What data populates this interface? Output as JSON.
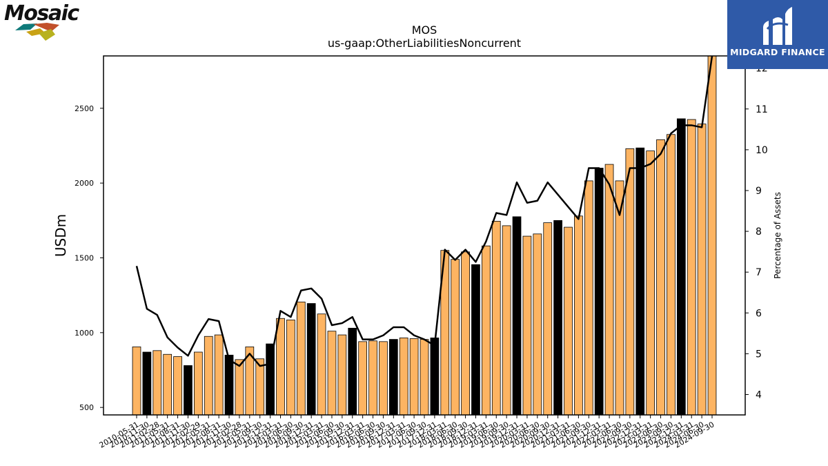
{
  "brand": {
    "left_logo_text": "Mosaic",
    "right_logo_text": "MIDGARD FINANCE",
    "colors": {
      "bar_regular": "#fdb462",
      "bar_highlight": "#000000",
      "line": "#000000",
      "midgard_bg": "#2f5aa8"
    }
  },
  "chart_data": {
    "type": "bar",
    "title": "MOS",
    "subtitle": "us-gaap:OtherLiabilitiesNoncurrent",
    "ylabel": "USDm",
    "y2label": "Percentage of Assets",
    "ylim": [
      450,
      2850
    ],
    "y2lim": [
      3.5,
      12.3
    ],
    "yticks": [
      500,
      1000,
      1500,
      2000,
      2500
    ],
    "y2ticks": [
      4,
      5,
      6,
      7,
      8,
      9,
      10,
      11,
      12
    ],
    "categories": [
      "2010-05-31",
      "2010-11-30",
      "2011-02-28",
      "2011-05-31",
      "2011-08-31",
      "2011-11-30",
      "2012-02-29",
      "2012-05-31",
      "2012-08-31",
      "2012-11-30",
      "2013-02-28",
      "2013-05-31",
      "2013-09-30",
      "2013-12-31",
      "2014-03-31",
      "2014-06-30",
      "2014-09-30",
      "2014-12-31",
      "2015-03-31",
      "2015-06-30",
      "2015-09-30",
      "2015-12-31",
      "2016-03-31",
      "2016-06-30",
      "2016-09-30",
      "2016-12-31",
      "2017-03-31",
      "2017-06-30",
      "2017-09-30",
      "2017-12-31",
      "2018-03-31",
      "2018-06-30",
      "2018-09-30",
      "2018-12-31",
      "2019-03-31",
      "2019-06-30",
      "2019-09-30",
      "2019-12-31",
      "2020-03-31",
      "2020-06-30",
      "2020-09-30",
      "2020-12-31",
      "2021-03-31",
      "2021-06-30",
      "2021-09-30",
      "2021-12-31",
      "2022-03-31",
      "2022-06-30",
      "2022-09-30",
      "2022-12-31",
      "2023-03-31",
      "2023-06-30",
      "2023-09-30",
      "2023-12-31",
      "2024-03-31",
      "2024-06-30",
      "2024-09-30"
    ],
    "values": [
      905,
      870,
      880,
      855,
      840,
      780,
      870,
      975,
      985,
      850,
      820,
      905,
      825,
      925,
      1095,
      1085,
      1205,
      1195,
      1125,
      1010,
      985,
      1030,
      940,
      945,
      940,
      955,
      965,
      960,
      955,
      965,
      1550,
      1490,
      1540,
      1455,
      1580,
      1745,
      1715,
      1775,
      1645,
      1660,
      1735,
      1750,
      1705,
      1780,
      2015,
      2100,
      2125,
      2015,
      2230,
      2235,
      2215,
      2290,
      2325,
      2430,
      2425,
      2395,
      2870
    ],
    "highlight": [
      false,
      true,
      false,
      false,
      false,
      true,
      false,
      false,
      false,
      true,
      false,
      false,
      false,
      true,
      false,
      false,
      false,
      true,
      false,
      false,
      false,
      true,
      false,
      false,
      false,
      true,
      false,
      false,
      false,
      true,
      false,
      false,
      false,
      true,
      false,
      false,
      false,
      true,
      false,
      false,
      false,
      true,
      false,
      false,
      false,
      true,
      false,
      false,
      false,
      true,
      false,
      false,
      false,
      true,
      false,
      false,
      false
    ],
    "line_series": {
      "name": "Percentage of Assets",
      "values": [
        7.15,
        6.1,
        5.95,
        5.4,
        5.15,
        4.95,
        5.45,
        5.85,
        5.8,
        4.85,
        4.7,
        5.0,
        4.7,
        4.75,
        6.05,
        5.9,
        6.55,
        6.6,
        6.35,
        5.7,
        5.75,
        5.9,
        5.35,
        5.35,
        5.45,
        5.65,
        5.65,
        5.45,
        5.35,
        5.2,
        7.55,
        7.3,
        7.55,
        7.25,
        7.75,
        8.45,
        8.4,
        9.2,
        8.7,
        8.75,
        9.2,
        8.9,
        8.6,
        8.3,
        9.55,
        9.55,
        9.15,
        8.4,
        9.55,
        9.55,
        9.65,
        9.9,
        10.4,
        10.6,
        10.6,
        10.55,
        12.3
      ]
    }
  }
}
